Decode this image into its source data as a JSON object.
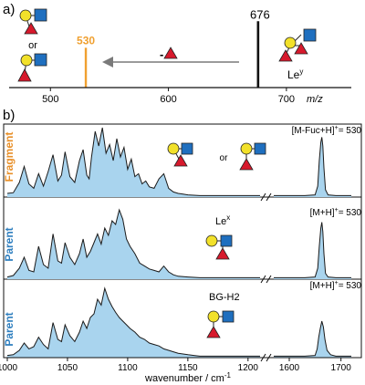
{
  "colors": {
    "fragment_label": "#e8902a",
    "parent_label": "#2f7fbf",
    "spectrum_fill": "#a9d4ee",
    "spectrum_line": "#1a1a1a",
    "gal": "#f2e12a",
    "glcnac": "#1f6fbf",
    "fuc": "#d7192c",
    "ms_peak_530": "#f0a030",
    "arrow": "#7a7a7a"
  },
  "panel_a": {
    "label": "a)",
    "peak_label_530": "530",
    "peak_label_676": "676",
    "or_label": "or",
    "loss_label": "-",
    "lewis_label": "Le",
    "lewis_sup": "y",
    "axis_label": "m/z",
    "chart_data": {
      "type": "bar",
      "x": [
        530,
        676
      ],
      "values": [
        0.6,
        1.0
      ],
      "xticks": [
        500,
        600,
        700
      ],
      "xlim": [
        465,
        755
      ],
      "ylim": [
        0,
        1.1
      ],
      "xlabel": "m/z",
      "ylabel": ""
    }
  },
  "panel_b": {
    "label": "b)",
    "xlabel": "wavenumber / cm",
    "xlabel_sup": "-1",
    "xticks_left": [
      1000,
      1050,
      1100,
      1150,
      1200
    ],
    "xticks_right": [
      1600,
      1700
    ],
    "traces": [
      {
        "side_label": "Fragment",
        "side_color": "#e8902a",
        "tag_prefix": "[M-Fuc+H]",
        "tag_sup": "+",
        "tag_suffix": "= 530",
        "or_label": "or",
        "name_main": "",
        "name_sup": ""
      },
      {
        "side_label": "Parent",
        "side_color": "#2f7fbf",
        "tag_prefix": "[M+H]",
        "tag_sup": "+",
        "tag_suffix": "= 530",
        "or_label": "",
        "name_main": "Le",
        "name_sup": "x"
      },
      {
        "side_label": "Parent",
        "side_color": "#2f7fbf",
        "tag_prefix": "[M+H]",
        "tag_sup": "+",
        "tag_suffix": "= 530",
        "or_label": "",
        "name_main": "BG-H2",
        "name_sup": ""
      }
    ],
    "chart_data": {
      "type": "line",
      "xlim_left": [
        1000,
        1210
      ],
      "xlim_right": [
        1570,
        1720
      ],
      "ylim": [
        0,
        1
      ],
      "xlabel": "wavenumber / cm-1",
      "ylabel": "",
      "series": [
        {
          "x": [
            1000,
            1005,
            1010,
            1014,
            1018,
            1022,
            1026,
            1030,
            1034,
            1038,
            1042,
            1045,
            1048,
            1052,
            1056,
            1060,
            1063,
            1066,
            1068,
            1070,
            1073,
            1076,
            1079,
            1082,
            1085,
            1088,
            1091,
            1094,
            1097,
            1100,
            1103,
            1106,
            1109,
            1112,
            1115,
            1118,
            1122,
            1126,
            1130,
            1134,
            1138,
            1142,
            1146,
            1150,
            1160,
            1170,
            1180,
            1195,
            1210
          ],
          "y": [
            0.05,
            0.06,
            0.2,
            0.42,
            0.18,
            0.12,
            0.32,
            0.15,
            0.35,
            0.58,
            0.22,
            0.3,
            0.62,
            0.28,
            0.2,
            0.5,
            0.65,
            0.3,
            0.25,
            0.55,
            0.9,
            0.7,
            0.95,
            0.6,
            0.72,
            0.5,
            0.8,
            0.55,
            0.68,
            0.38,
            0.52,
            0.28,
            0.32,
            0.18,
            0.22,
            0.14,
            0.12,
            0.25,
            0.32,
            0.12,
            0.07,
            0.05,
            0.04,
            0.03,
            0.02,
            0.02,
            0.02,
            0.02,
            0.02
          ]
        },
        {
          "x": [
            1000,
            1005,
            1010,
            1014,
            1018,
            1022,
            1026,
            1030,
            1034,
            1038,
            1042,
            1045,
            1048,
            1052,
            1056,
            1060,
            1063,
            1066,
            1069,
            1072,
            1075,
            1078,
            1081,
            1084,
            1087,
            1090,
            1093,
            1096,
            1099,
            1102,
            1106,
            1110,
            1114,
            1118,
            1122,
            1126,
            1130,
            1134,
            1138,
            1142,
            1150,
            1160,
            1170,
            1180,
            1195,
            1210
          ],
          "y": [
            0.03,
            0.05,
            0.15,
            0.3,
            0.12,
            0.1,
            0.45,
            0.2,
            0.15,
            0.62,
            0.25,
            0.22,
            0.5,
            0.3,
            0.2,
            0.35,
            0.55,
            0.3,
            0.38,
            0.5,
            0.62,
            0.48,
            0.7,
            0.6,
            0.8,
            0.75,
            0.95,
            0.82,
            0.55,
            0.45,
            0.35,
            0.22,
            0.18,
            0.14,
            0.12,
            0.1,
            0.18,
            0.1,
            0.06,
            0.04,
            0.03,
            0.02,
            0.02,
            0.02,
            0.02,
            0.02
          ]
        },
        {
          "x": [
            1000,
            1005,
            1010,
            1014,
            1018,
            1022,
            1026,
            1030,
            1034,
            1038,
            1042,
            1045,
            1048,
            1052,
            1056,
            1060,
            1063,
            1066,
            1069,
            1072,
            1075,
            1078,
            1081,
            1084,
            1087,
            1090,
            1093,
            1096,
            1099,
            1102,
            1106,
            1110,
            1114,
            1118,
            1122,
            1126,
            1130,
            1134,
            1138,
            1142,
            1146,
            1150,
            1155,
            1160,
            1170,
            1180,
            1195,
            1210
          ],
          "y": [
            0.03,
            0.04,
            0.1,
            0.2,
            0.12,
            0.15,
            0.28,
            0.18,
            0.12,
            0.48,
            0.25,
            0.22,
            0.45,
            0.3,
            0.22,
            0.35,
            0.5,
            0.4,
            0.55,
            0.6,
            0.8,
            0.72,
            0.95,
            0.8,
            0.7,
            0.62,
            0.55,
            0.5,
            0.45,
            0.4,
            0.35,
            0.28,
            0.25,
            0.2,
            0.18,
            0.16,
            0.12,
            0.1,
            0.08,
            0.06,
            0.05,
            0.04,
            0.03,
            0.02,
            0.02,
            0.02,
            0.02,
            0.02
          ]
        }
      ],
      "series_right": [
        {
          "x": [
            1570,
            1600,
            1630,
            1650,
            1655,
            1658,
            1661,
            1663,
            1665,
            1667,
            1670,
            1675,
            1690,
            1720
          ],
          "y": [
            0.02,
            0.02,
            0.02,
            0.03,
            0.15,
            0.5,
            0.75,
            0.82,
            0.7,
            0.4,
            0.1,
            0.03,
            0.02,
            0.02
          ]
        },
        {
          "x": [
            1570,
            1600,
            1630,
            1650,
            1655,
            1658,
            1661,
            1663,
            1665,
            1667,
            1670,
            1675,
            1690,
            1720
          ],
          "y": [
            0.02,
            0.02,
            0.02,
            0.03,
            0.15,
            0.45,
            0.7,
            0.78,
            0.65,
            0.35,
            0.08,
            0.03,
            0.02,
            0.02
          ]
        },
        {
          "x": [
            1570,
            1600,
            1630,
            1650,
            1654,
            1657,
            1660,
            1663,
            1666,
            1669,
            1673,
            1680,
            1690,
            1720
          ],
          "y": [
            0.02,
            0.02,
            0.02,
            0.03,
            0.12,
            0.28,
            0.4,
            0.5,
            0.42,
            0.25,
            0.1,
            0.04,
            0.02,
            0.02
          ]
        }
      ]
    }
  }
}
